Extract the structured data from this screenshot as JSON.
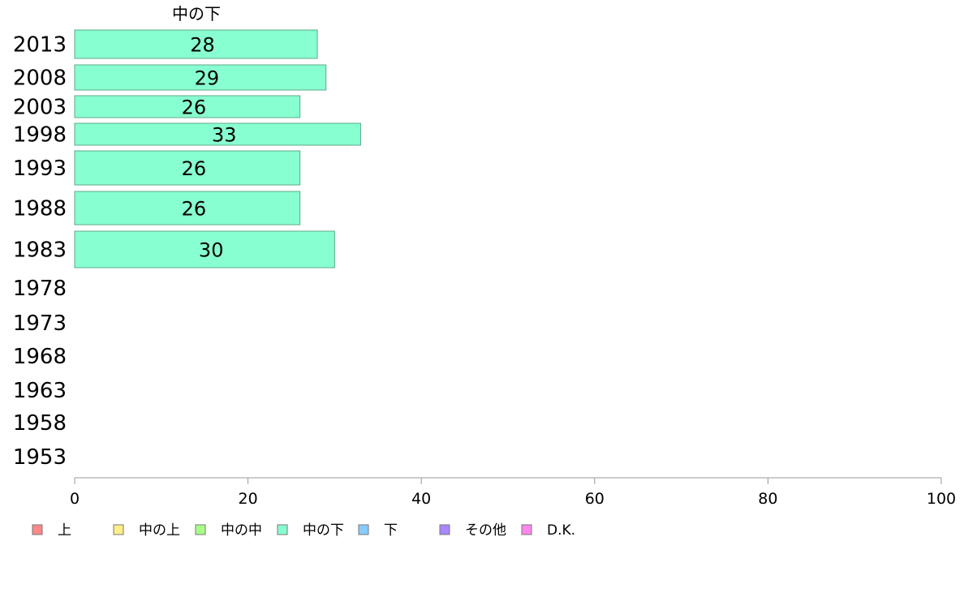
{
  "chart_data": {
    "type": "bar",
    "orientation": "horizontal",
    "title": "中の下",
    "categories": [
      "2013",
      "2008",
      "2003",
      "1998",
      "1993",
      "1988",
      "1983",
      "1978",
      "1973",
      "1968",
      "1963",
      "1958",
      "1953"
    ],
    "series": [
      {
        "name": "中の下",
        "values": [
          28,
          29,
          26,
          33,
          26,
          26,
          30,
          null,
          null,
          null,
          null,
          null,
          null
        ]
      }
    ],
    "data_labels": [
      "28",
      "29",
      "26",
      "33",
      "26",
      "26",
      "30"
    ],
    "xlim": [
      0,
      100
    ],
    "xticks": [
      "0",
      "20",
      "40",
      "60",
      "80",
      "100"
    ],
    "grid": false,
    "bar_color": "#88ffd0",
    "legend": {
      "placement": "bottom",
      "entries": [
        {
          "label": "上",
          "color": "#ff8888"
        },
        {
          "label": "中の上",
          "color": "#ffee88"
        },
        {
          "label": "中の中",
          "color": "#aaff88"
        },
        {
          "label": "中の下",
          "color": "#88ffd0"
        },
        {
          "label": "下",
          "color": "#88ccff"
        },
        {
          "label": "その他",
          "color": "#aa88ff"
        },
        {
          "label": "D.K.",
          "color": "#ff88ee"
        }
      ]
    }
  }
}
